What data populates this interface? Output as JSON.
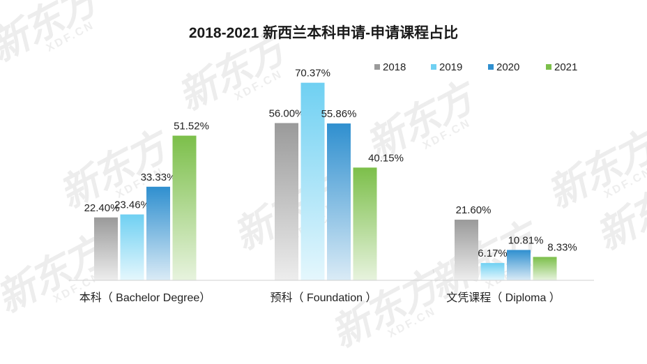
{
  "chart_data": {
    "type": "bar",
    "title": "2018-2021 新西兰本科申请-申请课程占比",
    "categories": [
      "本科（ Bachelor Degree）",
      "预科（ Foundation ）",
      "文凭课程（ Diploma ）"
    ],
    "series": [
      {
        "name": "2018",
        "values": [
          22.4,
          56.0,
          21.6
        ],
        "labels": [
          "22.40%",
          "56.00%",
          "21.60%"
        ],
        "color": "#9a9a9a"
      },
      {
        "name": "2019",
        "values": [
          23.46,
          70.37,
          6.17
        ],
        "labels": [
          "23.46%",
          "70.37%",
          "6.17%"
        ],
        "color": "#6fd0f2"
      },
      {
        "name": "2020",
        "values": [
          33.33,
          55.86,
          10.81
        ],
        "labels": [
          "33.33%",
          "55.86%",
          "10.81%"
        ],
        "color": "#2f8fcf"
      },
      {
        "name": "2021",
        "values": [
          51.52,
          40.15,
          8.33
        ],
        "labels": [
          "51.52%",
          "40.15%",
          "8.33%"
        ],
        "color": "#7cbf4a"
      }
    ],
    "ylim": [
      0,
      75
    ],
    "grid": false,
    "legend": "top-right",
    "xlabel": "",
    "ylabel": ""
  },
  "watermark": {
    "text": "新东方",
    "subtext": "XDF.CN"
  }
}
